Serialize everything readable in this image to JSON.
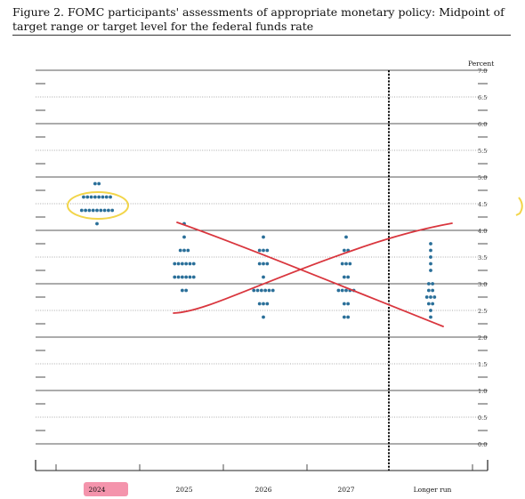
{
  "figure": {
    "title": "Figure 2.  FOMC participants' assessments of appropriate monetary policy:  Midpoint of target range or target level for the federal funds rate"
  },
  "chart_data": {
    "type": "scatter",
    "ylabel": "Percent",
    "ylim": [
      0,
      7.0
    ],
    "y_ticks": [
      "7.0",
      "6.5",
      "6.0",
      "5.5",
      "5.0",
      "4.5",
      "4.0",
      "3.5",
      "3.0",
      "2.5",
      "2.0",
      "1.5",
      "1.0",
      "0.5",
      "0.0"
    ],
    "categories": [
      "2024",
      "2025",
      "2026",
      "2027",
      "Longer run"
    ],
    "grid": true,
    "dots": [
      {
        "category": "2024",
        "rates": [
          {
            "y": 4.875,
            "count": 2
          },
          {
            "y": 4.625,
            "count": 8
          },
          {
            "y": 4.375,
            "count": 9
          },
          {
            "y": 4.125,
            "count": 1
          }
        ]
      },
      {
        "category": "2025",
        "rates": [
          {
            "y": 4.125,
            "count": 1
          },
          {
            "y": 3.875,
            "count": 1
          },
          {
            "y": 3.625,
            "count": 3
          },
          {
            "y": 3.375,
            "count": 6
          },
          {
            "y": 3.125,
            "count": 6
          },
          {
            "y": 2.875,
            "count": 2
          }
        ]
      },
      {
        "category": "2026",
        "rates": [
          {
            "y": 3.875,
            "count": 1
          },
          {
            "y": 3.625,
            "count": 3
          },
          {
            "y": 3.375,
            "count": 3
          },
          {
            "y": 3.125,
            "count": 1
          },
          {
            "y": 2.875,
            "count": 6
          },
          {
            "y": 2.625,
            "count": 3
          },
          {
            "y": 2.375,
            "count": 1
          }
        ]
      },
      {
        "category": "2027",
        "rates": [
          {
            "y": 3.875,
            "count": 1
          },
          {
            "y": 3.625,
            "count": 2
          },
          {
            "y": 3.375,
            "count": 3
          },
          {
            "y": 3.125,
            "count": 2
          },
          {
            "y": 2.875,
            "count": 5
          },
          {
            "y": 2.625,
            "count": 2
          },
          {
            "y": 2.375,
            "count": 2
          }
        ]
      },
      {
        "category": "Longer run",
        "rates": [
          {
            "y": 3.75,
            "count": 1
          },
          {
            "y": 3.625,
            "count": 1
          },
          {
            "y": 3.5,
            "count": 1
          },
          {
            "y": 3.375,
            "count": 1
          },
          {
            "y": 3.25,
            "count": 1
          },
          {
            "y": 3.0,
            "count": 2
          },
          {
            "y": 2.875,
            "count": 2
          },
          {
            "y": 2.75,
            "count": 3
          },
          {
            "y": 2.625,
            "count": 2
          },
          {
            "y": 2.5,
            "count": 1
          },
          {
            "y": 2.375,
            "count": 1
          }
        ]
      }
    ]
  },
  "annotations": {
    "dot_color": "#2a6f99",
    "highlight_yellow": "#f2d54a",
    "highlight_pink": "#f07090",
    "cross_red": "#d9363e"
  }
}
